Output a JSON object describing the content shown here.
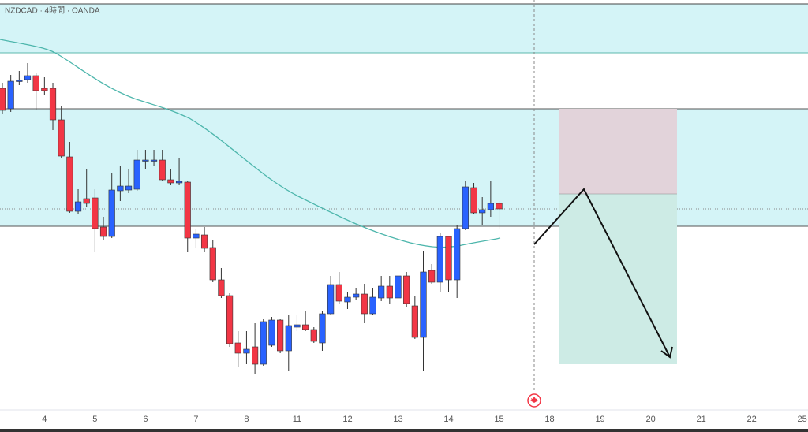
{
  "chart_data": {
    "type": "candlestick",
    "title": "NZDCAD · 4時間 · OANDA",
    "categories": [
      null,
      null,
      null,
      null,
      null,
      "4",
      null,
      null,
      null,
      null,
      null,
      "5",
      null,
      null,
      null,
      null,
      null,
      "6",
      null,
      null,
      null,
      null,
      null,
      "7",
      null,
      null,
      null,
      null,
      null,
      "8",
      null,
      null,
      null,
      null,
      null,
      "11",
      null,
      null,
      null,
      null,
      null,
      "12",
      null,
      null,
      null,
      null,
      null,
      "13",
      null,
      null,
      null,
      null,
      null,
      "14",
      null,
      null,
      null,
      null,
      null,
      "15",
      null,
      null,
      null,
      null,
      null,
      "18",
      null,
      null,
      null,
      null,
      null,
      "19",
      null,
      null,
      null,
      null,
      null,
      "20",
      null,
      null,
      null,
      null,
      null,
      "21",
      null,
      null,
      null,
      null,
      null,
      "22",
      null,
      null,
      null,
      null,
      null,
      "25"
    ],
    "open": [
      408,
      382,
      417,
      419,
      424,
      408,
      408,
      368,
      321,
      252,
      268,
      269,
      232,
      220,
      278,
      279,
      280,
      317,
      317,
      317,
      292,
      288,
      289,
      218,
      222,
      206,
      165,
      145,
      85,
      72,
      80,
      58,
      82,
      114,
      75,
      105,
      108,
      102,
      85,
      122,
      159,
      137,
      143,
      147,
      122,
      142,
      157,
      142,
      170,
      132,
      92,
      177,
      162,
      220,
      165,
      230,
      282,
      250,
      254,
      262,
      null,
      null,
      null,
      null,
      null,
      null,
      null,
      null,
      null,
      null,
      null,
      null,
      null,
      null,
      null,
      null,
      null,
      null,
      null,
      null,
      null,
      null,
      null,
      null,
      null,
      null,
      null,
      null,
      null,
      null,
      null,
      null,
      null,
      null,
      null,
      null
    ],
    "high": [
      415,
      425,
      430,
      440,
      427,
      422,
      415,
      385,
      340,
      280,
      305,
      280,
      245,
      300,
      310,
      305,
      330,
      330,
      330,
      330,
      305,
      320,
      290,
      230,
      232,
      215,
      180,
      148,
      100,
      100,
      110,
      115,
      118,
      115,
      120,
      120,
      125,
      105,
      125,
      170,
      175,
      150,
      155,
      160,
      155,
      170,
      170,
      175,
      175,
      145,
      202,
      185,
      225,
      220,
      235,
      290,
      288,
      270,
      290,
      265,
      null,
      null,
      null,
      null,
      null,
      null,
      null,
      null,
      null,
      null,
      null,
      null,
      null,
      null,
      null,
      null,
      null,
      null,
      null,
      null,
      null,
      null,
      null,
      null,
      null,
      null,
      null,
      null,
      null,
      null,
      null,
      null,
      null,
      null,
      null,
      null
    ],
    "low": [
      375,
      378,
      412,
      415,
      380,
      400,
      355,
      320,
      250,
      248,
      258,
      200,
      215,
      218,
      265,
      275,
      278,
      305,
      310,
      290,
      285,
      285,
      200,
      205,
      200,
      162,
      142,
      80,
      55,
      58,
      45,
      56,
      80,
      72,
      50,
      100,
      100,
      85,
      75,
      120,
      135,
      128,
      140,
      110,
      120,
      138,
      135,
      135,
      130,
      90,
      50,
      160,
      150,
      150,
      142,
      228,
      248,
      235,
      245,
      230,
      null,
      null,
      null,
      null,
      null,
      null,
      null,
      null,
      null,
      null,
      null,
      null,
      null,
      null,
      null,
      null,
      null,
      null,
      null,
      null,
      null,
      null,
      null,
      null,
      null,
      null,
      null,
      null,
      null,
      null,
      null,
      null,
      null,
      null,
      null,
      null
    ],
    "close": [
      380,
      417,
      418,
      424,
      405,
      405,
      368,
      322,
      252,
      264,
      262,
      230,
      220,
      279,
      284,
      284,
      317,
      317,
      317,
      292,
      288,
      290,
      218,
      223,
      205,
      165,
      145,
      84,
      72,
      77,
      58,
      112,
      114,
      75,
      107,
      108,
      102,
      87,
      122,
      159,
      138,
      143,
      147,
      122,
      143,
      157,
      142,
      170,
      135,
      92,
      175,
      162,
      220,
      165,
      230,
      283,
      250,
      254,
      262,
      255,
      null,
      null,
      null,
      null,
      null,
      null,
      null,
      null,
      null,
      null,
      null,
      null,
      null,
      null,
      null,
      null,
      null,
      null,
      null,
      null,
      null,
      null,
      null,
      null,
      null,
      null,
      null,
      null,
      null,
      null,
      null,
      null,
      null,
      null,
      null,
      null
    ],
    "up_color": "#2962ff",
    "down_color": "#f23645",
    "ylim": [
      0,
      520
    ]
  }
}
